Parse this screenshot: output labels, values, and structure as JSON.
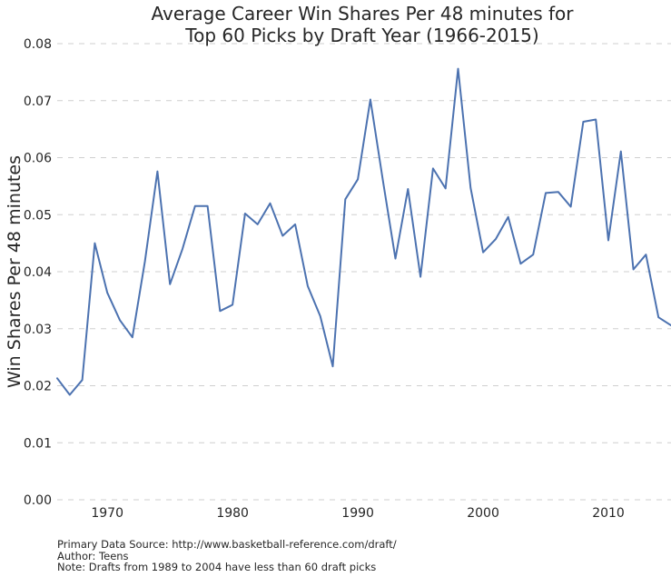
{
  "chart_data": {
    "type": "line",
    "title_lines": [
      "Average Career Win Shares Per 48 minutes for",
      "Top 60 Picks by Draft Year (1966-2015)"
    ],
    "xlabel": "",
    "ylabel": "Win Shares Per 48 minutes",
    "xlim": [
      1966,
      2015
    ],
    "ylim": [
      0,
      0.08
    ],
    "xticks": [
      1970,
      1980,
      1990,
      2000,
      2010
    ],
    "yticks": [
      "0.00",
      "0.01",
      "0.02",
      "0.03",
      "0.04",
      "0.05",
      "0.06",
      "0.07",
      "0.08"
    ],
    "grid": "horizontal dashed",
    "series": [
      {
        "color": "#4c72b0",
        "x": [
          1966,
          1967,
          1968,
          1969,
          1970,
          1971,
          1972,
          1973,
          1974,
          1975,
          1976,
          1977,
          1978,
          1979,
          1980,
          1981,
          1982,
          1983,
          1984,
          1985,
          1986,
          1987,
          1988,
          1989,
          1990,
          1991,
          1992,
          1993,
          1994,
          1995,
          1996,
          1997,
          1998,
          1999,
          2000,
          2001,
          2002,
          2003,
          2004,
          2005,
          2006,
          2007,
          2008,
          2009,
          2010,
          2011,
          2012,
          2013,
          2014,
          2015
        ],
        "values": [
          0.0213,
          0.0184,
          0.021,
          0.045,
          0.0363,
          0.0315,
          0.0285,
          0.0418,
          0.0576,
          0.0378,
          0.044,
          0.0515,
          0.0515,
          0.0331,
          0.0342,
          0.0502,
          0.0483,
          0.052,
          0.0463,
          0.0483,
          0.0375,
          0.0322,
          0.0234,
          0.0527,
          0.0562,
          0.0702,
          0.056,
          0.0423,
          0.0545,
          0.0391,
          0.0581,
          0.0546,
          0.0756,
          0.0547,
          0.0434,
          0.0457,
          0.0496,
          0.0414,
          0.043,
          0.0538,
          0.054,
          0.0514,
          0.0663,
          0.0667,
          0.0455,
          0.0611,
          0.0404,
          0.043,
          0.032,
          0.0306
        ]
      }
    ]
  },
  "notes": [
    "Primary Data Source: http://www.basketball-reference.com/draft/",
    "Author: Teens",
    "Note: Drafts from 1989 to 2004 have less than 60 draft picks"
  ]
}
